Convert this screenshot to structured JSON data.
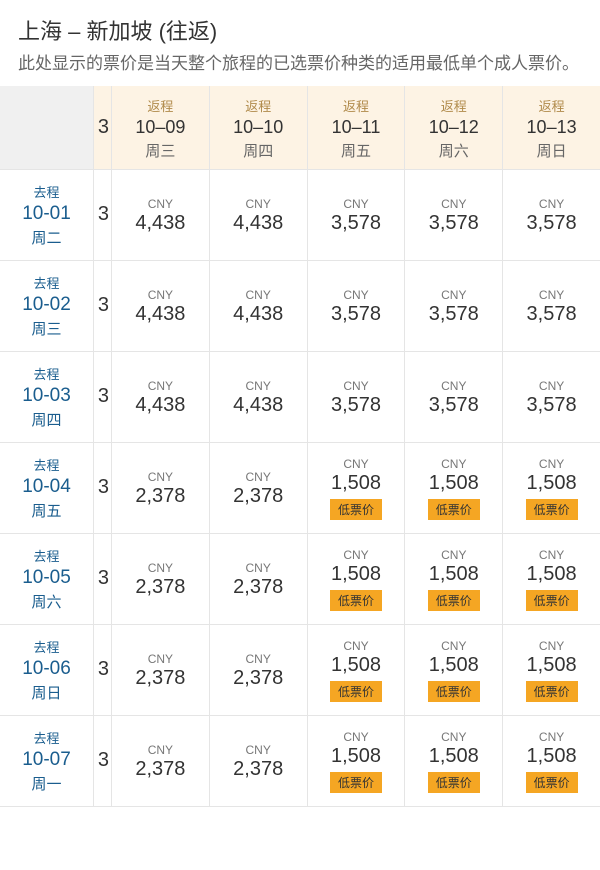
{
  "header": {
    "title": "上海 – 新加坡 (往返)",
    "subtitle": "此处显示的票价是当天整个旅程的已选票价种类的适用最低单个成人票价。"
  },
  "labels": {
    "return": "返程",
    "depart": "去程",
    "currency": "CNY",
    "lowFare": "低票价",
    "partial": "3"
  },
  "colors": {
    "headerBg": "#fdf3e4",
    "badgeBg": "#f5a623",
    "linkBlue": "#1a5d8e",
    "accentBrown": "#b08a4a",
    "border": "#e5e5e5"
  },
  "columns": [
    {
      "date": "10–09",
      "day": "周三"
    },
    {
      "date": "10–10",
      "day": "周四"
    },
    {
      "date": "10–11",
      "day": "周五"
    },
    {
      "date": "10–12",
      "day": "周六"
    },
    {
      "date": "10–13",
      "day": "周日"
    }
  ],
  "rows": [
    {
      "date": "10-01",
      "day": "周二",
      "prices": [
        "4,438",
        "4,438",
        "3,578",
        "3,578",
        "3,578"
      ],
      "low": [
        false,
        false,
        false,
        false,
        false
      ]
    },
    {
      "date": "10-02",
      "day": "周三",
      "prices": [
        "4,438",
        "4,438",
        "3,578",
        "3,578",
        "3,578"
      ],
      "low": [
        false,
        false,
        false,
        false,
        false
      ]
    },
    {
      "date": "10-03",
      "day": "周四",
      "prices": [
        "4,438",
        "4,438",
        "3,578",
        "3,578",
        "3,578"
      ],
      "low": [
        false,
        false,
        false,
        false,
        false
      ]
    },
    {
      "date": "10-04",
      "day": "周五",
      "prices": [
        "2,378",
        "2,378",
        "1,508",
        "1,508",
        "1,508"
      ],
      "low": [
        false,
        false,
        true,
        true,
        true
      ]
    },
    {
      "date": "10-05",
      "day": "周六",
      "prices": [
        "2,378",
        "2,378",
        "1,508",
        "1,508",
        "1,508"
      ],
      "low": [
        false,
        false,
        true,
        true,
        true
      ]
    },
    {
      "date": "10-06",
      "day": "周日",
      "prices": [
        "2,378",
        "2,378",
        "1,508",
        "1,508",
        "1,508"
      ],
      "low": [
        false,
        false,
        true,
        true,
        true
      ]
    },
    {
      "date": "10-07",
      "day": "周一",
      "prices": [
        "2,378",
        "2,378",
        "1,508",
        "1,508",
        "1,508"
      ],
      "low": [
        false,
        false,
        true,
        true,
        true
      ]
    }
  ]
}
